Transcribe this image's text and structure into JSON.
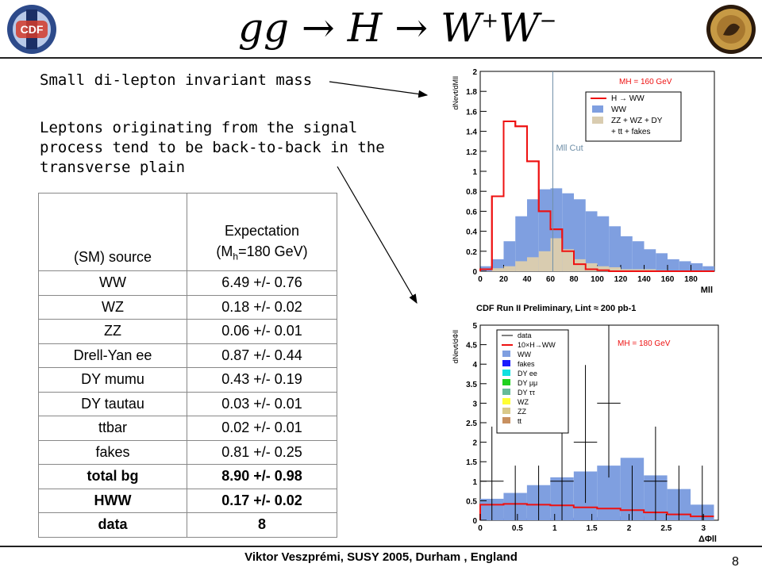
{
  "title": {
    "base": "gg → H → W",
    "sup1": "+",
    "mid": "W",
    "sup2": "−"
  },
  "notes": {
    "mass_note": "Small di-lepton invariant mass",
    "angle_lines": [
      "Leptons originating from the signal",
      "process tend to be back-to-back in the",
      "transverse plain"
    ]
  },
  "table": {
    "header": {
      "source": "(SM) source",
      "expect_l1": "Expectation",
      "expect_pre": "(M",
      "expect_sub": "h",
      "expect_post": "=180 GeV)"
    },
    "rows": [
      {
        "source": "WW",
        "value": "6.49 +/- 0.76"
      },
      {
        "source": "WZ",
        "value": "0.18 +/- 0.02"
      },
      {
        "source": "ZZ",
        "value": "0.06 +/- 0.01"
      },
      {
        "source": "Drell-Yan ee",
        "value": "0.87 +/- 0.44"
      },
      {
        "source": "DY mumu",
        "value": "0.43 +/- 0.19"
      },
      {
        "source": "DY tautau",
        "value": "0.03 +/- 0.01"
      },
      {
        "source": "ttbar",
        "value": "0.02 +/- 0.01"
      },
      {
        "source": "fakes",
        "value": "0.81 +/- 0.25"
      },
      {
        "source": "total bg",
        "value": "8.90 +/- 0.98"
      },
      {
        "source": "HWW",
        "value": "0.17 +/- 0.02"
      },
      {
        "source": "data",
        "value": "8"
      }
    ]
  },
  "footer": "Viktor Veszprémi, SUSY 2005, Durham , England",
  "page_number": "8",
  "logo_left": "CDF",
  "colors": {
    "signal_red": "#ee1111",
    "ww_blue": "#7f9fe0",
    "bg_tan": "#d9ccb0"
  },
  "chart_data": [
    {
      "type": "bar",
      "ylabel": "dNevt/dMll",
      "xlabel": "Mll",
      "legend_title": "MH = 160 GeV",
      "legend": [
        "H → WW",
        "WW",
        "ZZ + WZ + DY",
        "+ tt + fakes"
      ],
      "cut_label": "Mll Cut",
      "cut_x": 62,
      "xlim": [
        0,
        200
      ],
      "ylim": [
        0,
        2
      ],
      "xticks": [
        "0",
        "20",
        "40",
        "60",
        "80",
        "100",
        "120",
        "140",
        "160",
        "180"
      ],
      "yticks": [
        "0",
        "0.2",
        "0.4",
        "0.6",
        "0.8",
        "1",
        "1.2",
        "1.4",
        "1.6",
        "1.8",
        "2"
      ],
      "bin_width": 10,
      "bin_starts": [
        0,
        10,
        20,
        30,
        40,
        50,
        60,
        70,
        80,
        90,
        100,
        110,
        120,
        130,
        140,
        150,
        160,
        170,
        180,
        190
      ],
      "series": [
        {
          "name": "H → WW",
          "values": [
            0.02,
            0.75,
            1.5,
            1.45,
            1.1,
            0.6,
            0.42,
            0.2,
            0.07,
            0.02,
            0.01,
            0,
            0,
            0,
            0,
            0,
            0,
            0,
            0,
            0
          ]
        },
        {
          "name": "WW",
          "values": [
            0.05,
            0.12,
            0.3,
            0.55,
            0.72,
            0.82,
            0.83,
            0.78,
            0.72,
            0.6,
            0.55,
            0.45,
            0.35,
            0.3,
            0.22,
            0.18,
            0.12,
            0.1,
            0.08,
            0.05
          ]
        },
        {
          "name": "ZZ + WZ + DY + tt + fakes",
          "values": [
            0,
            0.03,
            0.05,
            0.1,
            0.14,
            0.2,
            0.33,
            0.22,
            0.12,
            0.08,
            0.05,
            0.04,
            0.02,
            0.02,
            0.02,
            0.01,
            0,
            0,
            0,
            0
          ]
        }
      ]
    },
    {
      "type": "bar",
      "title": "CDF Run II Preliminary, Lint ≈ 200 pb-1",
      "ylabel": "dNevt/dΦll",
      "xlabel": "ΔΦll",
      "legend_title": "MH = 180 GeV",
      "legend": [
        "data",
        "10×H→WW",
        "WW",
        "fakes",
        "DY ee",
        "DY μμ",
        "DY ττ",
        "WZ",
        "ZZ",
        "tt"
      ],
      "xlim": [
        0,
        3.2
      ],
      "ylim": [
        0,
        5
      ],
      "xticks": [
        "0",
        "0.5",
        "1",
        "1.5",
        "2",
        "2.5",
        "3"
      ],
      "yticks": [
        "0",
        "0.5",
        "1",
        "1.5",
        "2",
        "2.5",
        "3",
        "3.5",
        "4",
        "4.5",
        "5"
      ],
      "bin_width": 0.314,
      "bin_starts": [
        0,
        0.314,
        0.628,
        0.942,
        1.257,
        1.571,
        1.885,
        2.199,
        2.513,
        2.827
      ],
      "series": [
        {
          "name": "WW",
          "values": [
            0.55,
            0.7,
            0.9,
            1.1,
            1.25,
            1.4,
            1.6,
            1.15,
            0.8,
            0.4
          ]
        },
        {
          "name": "fakes",
          "values": [
            0.05,
            0.05,
            0.05,
            0.06,
            0.07,
            0.08,
            0.1,
            0.1,
            0.1,
            0.05
          ]
        },
        {
          "name": "DY ee",
          "values": [
            0,
            0,
            0,
            0.02,
            0.03,
            0.05,
            0.1,
            0.15,
            0.15,
            0.1
          ]
        },
        {
          "name": "10×H→WW",
          "values": [
            0.4,
            0.42,
            0.4,
            0.38,
            0.33,
            0.3,
            0.26,
            0.2,
            0.15,
            0.1
          ]
        },
        {
          "name": "data",
          "values": [
            1,
            0,
            0,
            1,
            2,
            3,
            0,
            1,
            0,
            0
          ]
        }
      ]
    }
  ]
}
